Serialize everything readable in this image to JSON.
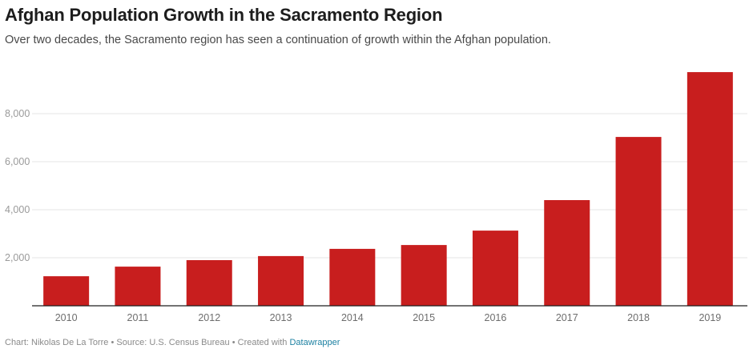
{
  "header": {
    "title": "Afghan Population Growth in the Sacramento Region",
    "subtitle": "Over two decades, the Sacramento region has seen a continuation of growth within the Afghan population."
  },
  "footer": {
    "chart_by": "Chart: Nikolas De La Torre",
    "separator": "•",
    "source": "Source: U.S. Census Bureau",
    "created_with": "Created with",
    "tool_link": "Datawrapper"
  },
  "colors": {
    "bar": "#c81e1e",
    "grid": "#e6e6e6",
    "baseline": "#1d1d1d",
    "link": "#1d81a2"
  },
  "chart_data": {
    "type": "bar",
    "title": "Afghan Population Growth in the Sacramento Region",
    "subtitle": "Over two decades, the Sacramento region has seen a continuation of growth within the Afghan population.",
    "xlabel": "",
    "ylabel": "",
    "categories": [
      "2010",
      "2011",
      "2012",
      "2013",
      "2014",
      "2015",
      "2016",
      "2017",
      "2018",
      "2019"
    ],
    "values": [
      1230,
      1630,
      1900,
      2070,
      2370,
      2530,
      3130,
      4400,
      7030,
      9730
    ],
    "ylim": [
      0,
      9733
    ],
    "yticks": [
      2000,
      4000,
      6000,
      8000
    ],
    "ytick_labels": [
      "2,000",
      "4,000",
      "6,000",
      "8,000"
    ],
    "grid": true,
    "legend": "none"
  }
}
